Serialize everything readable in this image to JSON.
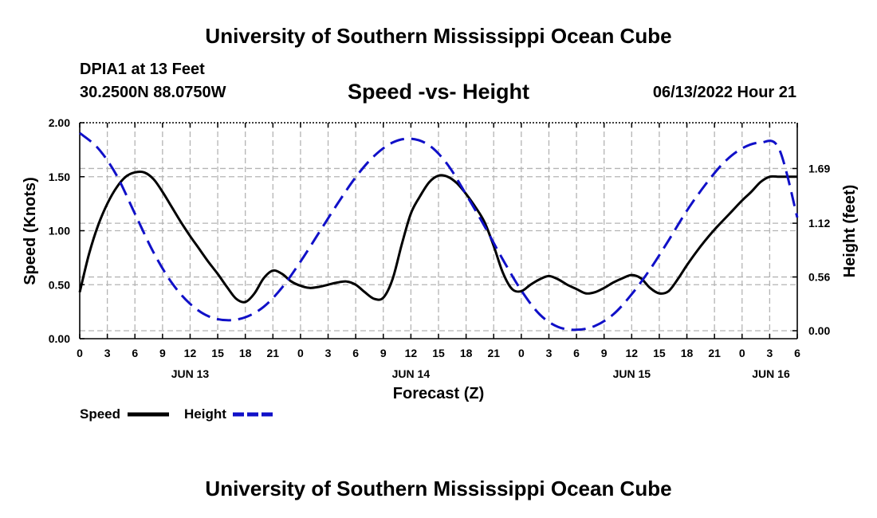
{
  "header": {
    "title": "University of Southern Mississippi Ocean Cube",
    "station": "DPIA1 at 13 Feet",
    "coords": "30.2500N  88.0750W",
    "subtitle": "Speed -vs- Height",
    "datestamp": "06/13/2022 Hour 21"
  },
  "footer": {
    "title": "University of Southern Mississippi Ocean Cube"
  },
  "colors": {
    "speed": "#000000",
    "height": "#1010c8",
    "grid": "#b4b4b4"
  },
  "chart_data": {
    "type": "line",
    "title": "Speed -vs- Height",
    "xlabel": "Forecast (Z)",
    "ylabel": "Speed (Knots)",
    "ylabel_right": "Height (feet)",
    "x_unit": "forecast hour from JUN 13 00Z",
    "xlim": [
      0,
      78
    ],
    "ylim": [
      0,
      2
    ],
    "ylim_right": [
      0,
      2.25
    ],
    "grid": true,
    "x_ticks": [
      0,
      3,
      6,
      9,
      12,
      15,
      18,
      21,
      24,
      27,
      30,
      33,
      36,
      39,
      42,
      45,
      48,
      51,
      54,
      57,
      60,
      63,
      66,
      69,
      72,
      75,
      78
    ],
    "x_tick_labels": [
      "0",
      "3",
      "6",
      "9",
      "12",
      "15",
      "18",
      "21",
      "0",
      "3",
      "6",
      "9",
      "12",
      "15",
      "18",
      "21",
      "0",
      "3",
      "6",
      "9",
      "12",
      "15",
      "18",
      "21",
      "0",
      "3",
      "6"
    ],
    "y_ticks": [
      0,
      0.5,
      1,
      1.5,
      2
    ],
    "y_tick_labels": [
      "0.00",
      "0.50",
      "1.00",
      "1.50",
      "2.00"
    ],
    "y_right_ticks": [
      0.0,
      0.56,
      1.12,
      1.69
    ],
    "y_right_tick_labels": [
      "0.00",
      "0.56",
      "1.12",
      "1.69"
    ],
    "day_labels": [
      {
        "x": 12,
        "label": "JUN 13"
      },
      {
        "x": 36,
        "label": "JUN 14"
      },
      {
        "x": 60,
        "label": "JUN 15"
      },
      {
        "x": 78,
        "label": "JUN 16"
      }
    ],
    "legend": [
      {
        "name": "Speed",
        "style": "solid"
      },
      {
        "name": "Height",
        "style": "dashed"
      }
    ],
    "series": [
      {
        "name": "Speed",
        "axis": "left",
        "style": "solid",
        "x": [
          0,
          1,
          2,
          3,
          4,
          5,
          6,
          7,
          8,
          9,
          10,
          11,
          12,
          13,
          14,
          15,
          16,
          17,
          18,
          19,
          20,
          21,
          22,
          23,
          24,
          25,
          26,
          27,
          28,
          29,
          30,
          31,
          32,
          33,
          34,
          35,
          36,
          37,
          38,
          39,
          40,
          41,
          42,
          43,
          44,
          45,
          46,
          47,
          48,
          49,
          50,
          51,
          52,
          53,
          54,
          55,
          56,
          57,
          58,
          59,
          60,
          61,
          62,
          63,
          64,
          65,
          66,
          67,
          68,
          69,
          70,
          71,
          72,
          73,
          74,
          75,
          76,
          77,
          78
        ],
        "y": [
          0.43,
          0.78,
          1.05,
          1.25,
          1.4,
          1.5,
          1.54,
          1.54,
          1.48,
          1.36,
          1.22,
          1.08,
          0.95,
          0.83,
          0.71,
          0.6,
          0.48,
          0.37,
          0.34,
          0.42,
          0.56,
          0.63,
          0.6,
          0.53,
          0.49,
          0.47,
          0.48,
          0.5,
          0.52,
          0.53,
          0.5,
          0.43,
          0.37,
          0.38,
          0.55,
          0.87,
          1.16,
          1.32,
          1.45,
          1.51,
          1.5,
          1.44,
          1.34,
          1.22,
          1.08,
          0.86,
          0.61,
          0.46,
          0.44,
          0.5,
          0.55,
          0.58,
          0.55,
          0.5,
          0.46,
          0.42,
          0.43,
          0.47,
          0.52,
          0.56,
          0.59,
          0.56,
          0.47,
          0.42,
          0.44,
          0.55,
          0.68,
          0.8,
          0.91,
          1.01,
          1.1,
          1.19,
          1.28,
          1.36,
          1.45,
          1.5,
          1.5,
          1.5,
          1.5
        ]
      },
      {
        "name": "Height",
        "axis": "right",
        "style": "dashed",
        "x": [
          0,
          2,
          4,
          6,
          8,
          10,
          12,
          14,
          16,
          18,
          20,
          22,
          24,
          26,
          28,
          30,
          32,
          34,
          36,
          38,
          40,
          42,
          44,
          46,
          48,
          50,
          52,
          54,
          56,
          58,
          60,
          62,
          64,
          66,
          68,
          70,
          72,
          74,
          76,
          78
        ],
        "y": [
          2.06,
          1.9,
          1.62,
          1.22,
          0.82,
          0.5,
          0.28,
          0.15,
          0.11,
          0.14,
          0.25,
          0.45,
          0.72,
          1.02,
          1.32,
          1.6,
          1.82,
          1.96,
          2.0,
          1.93,
          1.73,
          1.42,
          1.09,
          0.74,
          0.42,
          0.17,
          0.04,
          0.01,
          0.05,
          0.17,
          0.38,
          0.64,
          0.94,
          1.25,
          1.52,
          1.75,
          1.9,
          1.96,
          1.9,
          1.18
        ]
      }
    ]
  }
}
